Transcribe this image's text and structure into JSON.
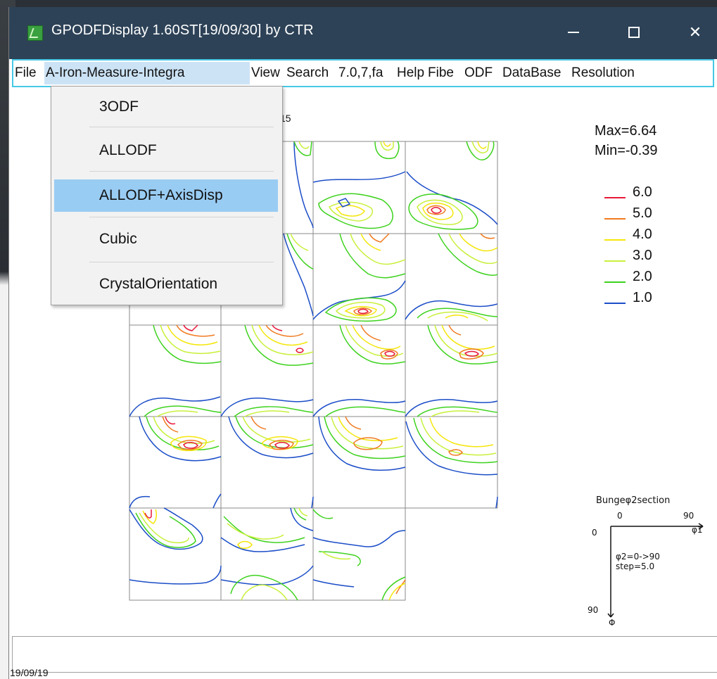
{
  "window": {
    "title": "GPODFDisplay 1.60ST[19/09/30] by CTR",
    "minimize_glyph": "—",
    "maximize_glyph": "☐",
    "close_glyph": "✕"
  },
  "menubar": {
    "items": [
      "File",
      "A-Iron-Measure-Integra",
      "View",
      "Search",
      "7.0,7,fa",
      "Help",
      "Fibe",
      "ODF",
      "DataBase",
      "Resolution"
    ]
  },
  "dropdown": {
    "items": [
      "3ODF",
      "ALLODF",
      "ALLODF+AxisDisp",
      "Cubic",
      "CrystalOrientation"
    ],
    "highlighted_index": 2
  },
  "plot": {
    "partial_label": "15",
    "max_text": "Max=6.64",
    "min_text": "Min=-0.39",
    "legend": [
      {
        "label": "6.0",
        "color": "#e8183a"
      },
      {
        "label": "5.0",
        "color": "#f07a20"
      },
      {
        "label": "4.0",
        "color": "#f4e60a"
      },
      {
        "label": "3.0",
        "color": "#c8f03c"
      },
      {
        "label": "2.0",
        "color": "#3ed21e"
      },
      {
        "label": "1.0",
        "color": "#1c4ec8"
      }
    ],
    "axis_title": "Bungeφ2section",
    "axis_zero_top": "0",
    "axis_ninety_top": "90",
    "axis_phi1": "φ1",
    "axis_zero_left": "0",
    "axis_ninety_left": "90",
    "axis_Phi": "Φ",
    "range_text": "φ2=0->90",
    "step_text": "step=5.0"
  },
  "statusbar": {
    "text": "19/09/19"
  }
}
